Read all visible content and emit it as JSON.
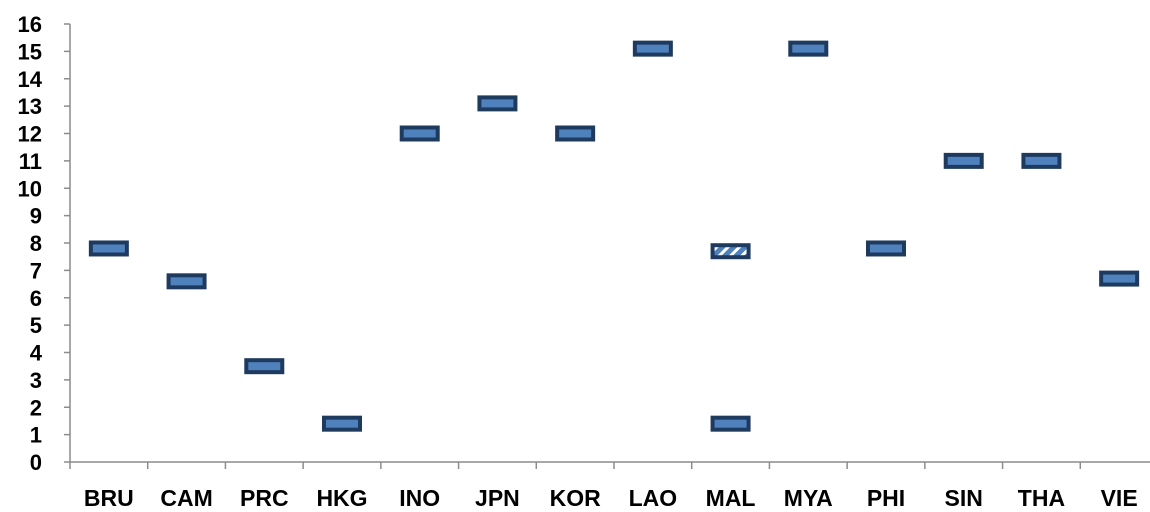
{
  "chart_data": {
    "type": "scatter",
    "title": "",
    "xlabel": "",
    "ylabel": "",
    "categories": [
      "BRU",
      "CAM",
      "PRC",
      "HKG",
      "INO",
      "JPN",
      "KOR",
      "LAO",
      "MAL",
      "MYA",
      "PHI",
      "SIN",
      "THA",
      "VIE"
    ],
    "ylim": [
      0,
      16
    ],
    "y_ticks": [
      "0",
      "1",
      "2",
      "3",
      "4",
      "5",
      "6",
      "7",
      "8",
      "9",
      "10",
      "11",
      "12",
      "13",
      "14",
      "15",
      "16"
    ],
    "grid": false,
    "legend": "none",
    "marker": "dash",
    "series": [
      {
        "values": [
          7.8,
          6.6,
          3.5,
          1.4,
          12.0,
          13.1,
          12.0,
          15.1,
          1.4,
          15.1,
          7.8,
          11.0,
          11.0,
          6.7
        ],
        "style": "solid"
      },
      {
        "values": [
          null,
          null,
          null,
          null,
          null,
          null,
          null,
          null,
          7.7,
          null,
          null,
          null,
          null,
          null
        ],
        "style": "hatched"
      }
    ],
    "colors": {
      "marker_border": "#1f3a5f",
      "marker_fill": "#4f81bd",
      "axis": "#8c8c8c"
    }
  }
}
